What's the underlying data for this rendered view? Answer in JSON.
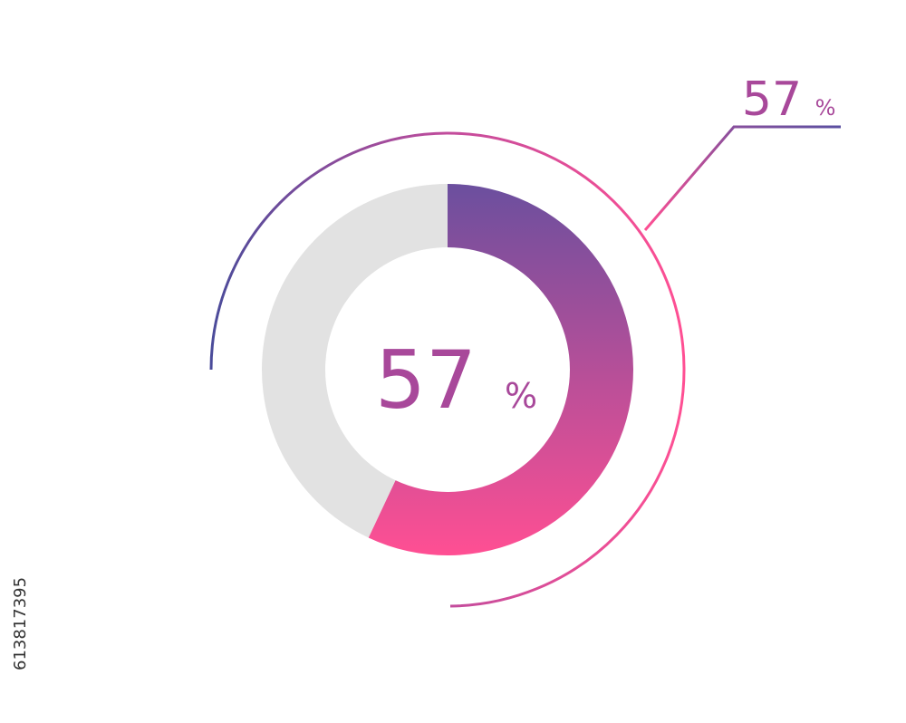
{
  "chart_data": {
    "type": "donut",
    "values": [
      57,
      43
    ],
    "unit": "%",
    "colors": [
      "#ff4f93",
      "#e2e2e2"
    ],
    "gradient_start": "#6b4f9e",
    "label_color": "#a8489a"
  },
  "watermark_id": "613817395"
}
